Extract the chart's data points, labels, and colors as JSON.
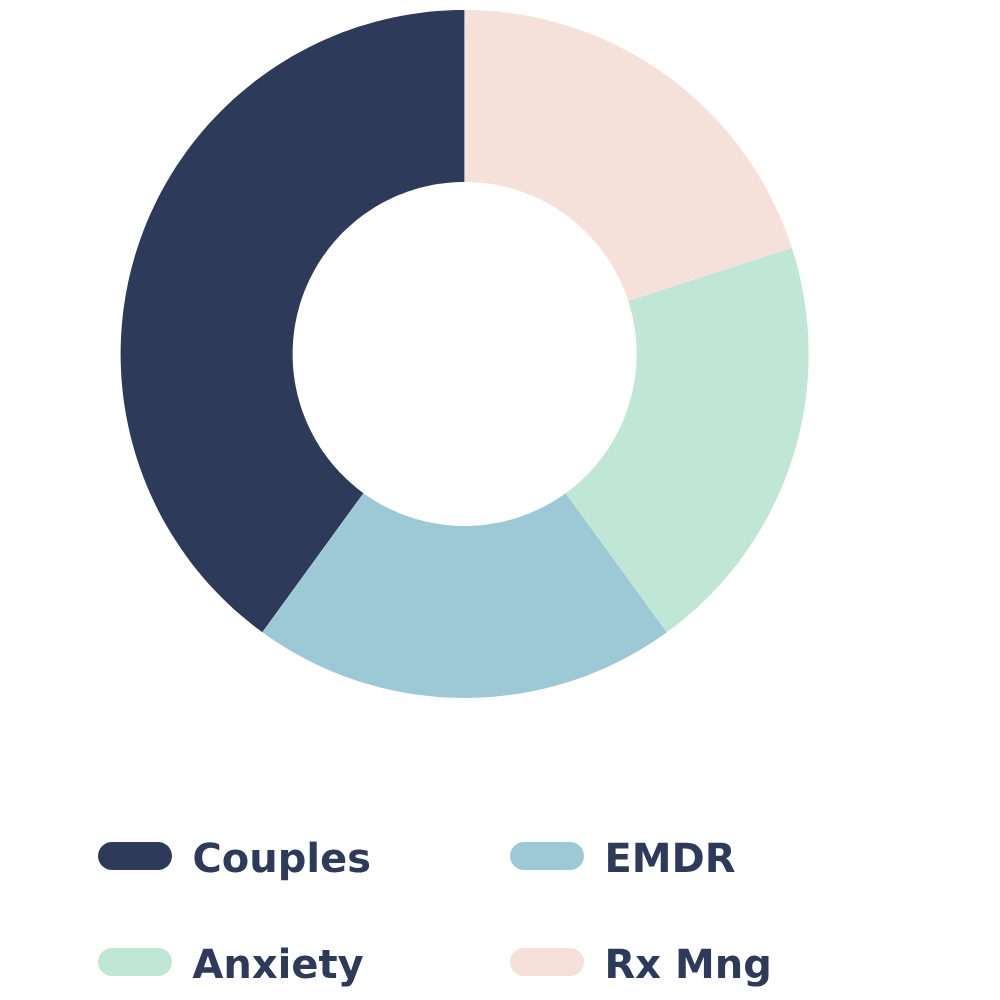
{
  "chart_data": {
    "type": "donut",
    "categories": [
      "Couples",
      "EMDR",
      "Anxiety",
      "Rx Mng"
    ],
    "values": [
      40,
      20,
      20,
      20
    ],
    "colors": [
      "#2d3a5a",
      "#9cc9d5",
      "#c0e6d5",
      "#f5e1d9"
    ],
    "legend": "bottom"
  }
}
